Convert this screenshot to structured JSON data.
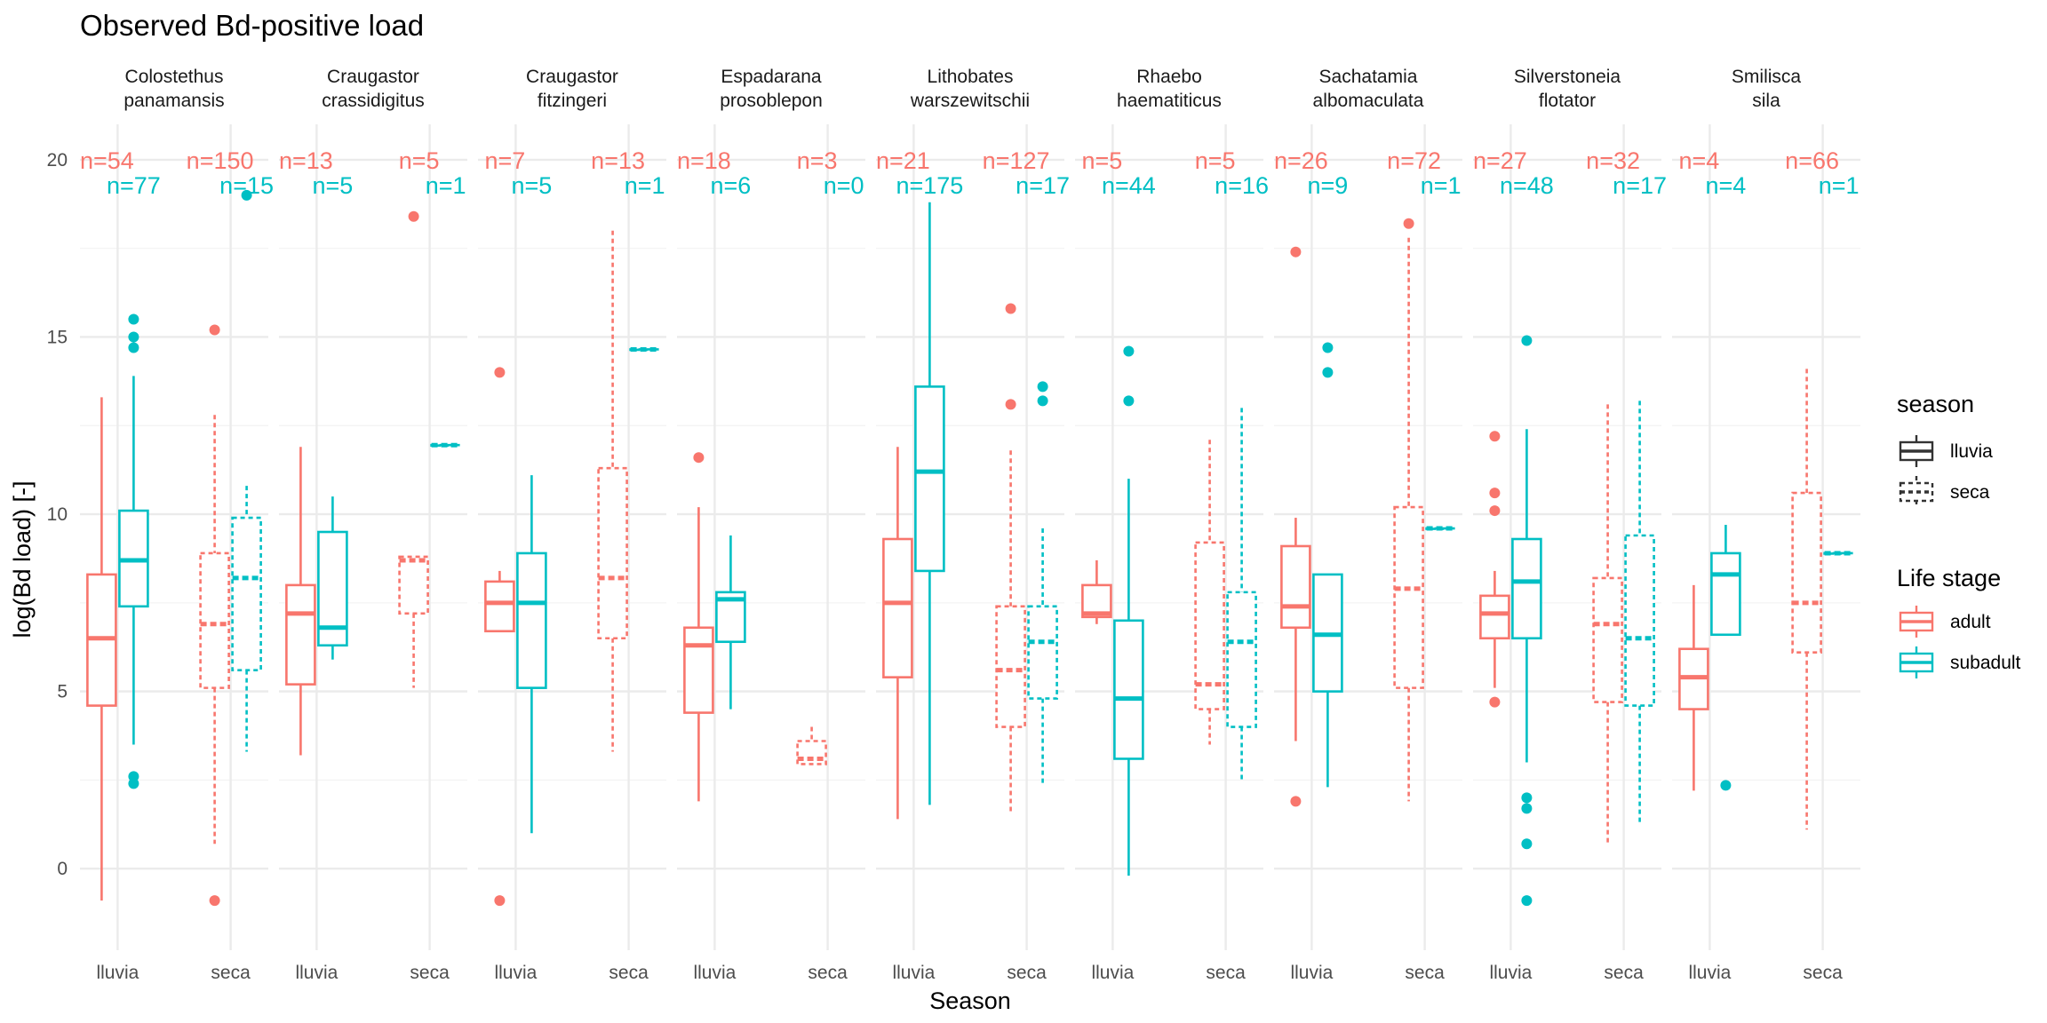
{
  "chart_data": {
    "type": "boxplot",
    "title": "Observed Bd-positive load",
    "xlabel": "Season",
    "ylabel": "log(Bd load) [-]",
    "ylim": [
      -2.3,
      21
    ],
    "yticks": [
      0,
      5,
      10,
      15,
      20
    ],
    "categories": [
      "lluvia",
      "seca"
    ],
    "grid": true,
    "colors": {
      "adult": "#F8766D",
      "subadult": "#00BFC4"
    },
    "legends": [
      {
        "title": "season",
        "entries": [
          {
            "label": "lluvia",
            "linetype": "solid"
          },
          {
            "label": "seca",
            "linetype": "dashed"
          }
        ]
      },
      {
        "title": "Life stage",
        "entries": [
          {
            "label": "adult",
            "color": "#F8766D"
          },
          {
            "label": "subadult",
            "color": "#00BFC4"
          }
        ]
      }
    ],
    "legend_placement": "right",
    "facets": [
      {
        "line1": "Colostethus",
        "line2": "panamansis",
        "counts": {
          "lluvia_adult": "n=54",
          "lluvia_subadult": "n=77",
          "seca_adult": "n=150",
          "seca_subadult": "n=15"
        },
        "boxes": [
          {
            "season": "lluvia",
            "stage": "adult",
            "lower": -0.9,
            "q1": 4.6,
            "median": 6.5,
            "q3": 8.3,
            "upper": 13.3,
            "outliers": []
          },
          {
            "season": "lluvia",
            "stage": "subadult",
            "lower": 3.5,
            "q1": 7.4,
            "median": 8.7,
            "q3": 10.1,
            "upper": 13.9,
            "outliers": [
              15.5,
              15.0,
              14.7,
              2.6,
              2.4
            ]
          },
          {
            "season": "seca",
            "stage": "adult",
            "lower": 0.7,
            "q1": 5.1,
            "median": 6.9,
            "q3": 8.9,
            "upper": 12.8,
            "outliers": [
              15.2,
              -0.9
            ]
          },
          {
            "season": "seca",
            "stage": "subadult",
            "lower": 3.3,
            "q1": 5.6,
            "median": 8.2,
            "q3": 9.9,
            "upper": 10.8,
            "outliers": [
              19.0
            ]
          }
        ]
      },
      {
        "line1": "Craugastor",
        "line2": "crassidigitus",
        "counts": {
          "lluvia_adult": "n=13",
          "lluvia_subadult": "n=5",
          "seca_adult": "n=5",
          "seca_subadult": "n=1"
        },
        "boxes": [
          {
            "season": "lluvia",
            "stage": "adult",
            "lower": 3.2,
            "q1": 5.2,
            "median": 7.2,
            "q3": 8.0,
            "upper": 11.9,
            "outliers": []
          },
          {
            "season": "lluvia",
            "stage": "subadult",
            "lower": 5.9,
            "q1": 6.3,
            "median": 6.8,
            "q3": 9.5,
            "upper": 10.5,
            "outliers": []
          },
          {
            "season": "seca",
            "stage": "adult",
            "lower": 5.1,
            "q1": 7.2,
            "median": 8.7,
            "q3": 8.8,
            "upper": 8.8,
            "outliers": [
              18.4
            ]
          },
          {
            "season": "seca",
            "stage": "subadult",
            "lower": 11.95,
            "q1": 11.95,
            "median": 11.95,
            "q3": 11.95,
            "upper": 11.95,
            "outliers": []
          }
        ]
      },
      {
        "line1": "Craugastor",
        "line2": "fitzingeri",
        "counts": {
          "lluvia_adult": "n=7",
          "lluvia_subadult": "n=5",
          "seca_adult": "n=13",
          "seca_subadult": "n=1"
        },
        "boxes": [
          {
            "season": "lluvia",
            "stage": "adult",
            "lower": 6.7,
            "q1": 6.7,
            "median": 7.5,
            "q3": 8.1,
            "upper": 8.4,
            "outliers": [
              14.0,
              -0.9
            ]
          },
          {
            "season": "lluvia",
            "stage": "subadult",
            "lower": 1.0,
            "q1": 5.1,
            "median": 7.5,
            "q3": 8.9,
            "upper": 11.1,
            "outliers": []
          },
          {
            "season": "seca",
            "stage": "adult",
            "lower": 3.3,
            "q1": 6.5,
            "median": 8.2,
            "q3": 11.3,
            "upper": 18.0,
            "outliers": []
          },
          {
            "season": "seca",
            "stage": "subadult",
            "lower": 14.65,
            "q1": 14.65,
            "median": 14.65,
            "q3": 14.65,
            "upper": 14.65,
            "outliers": []
          }
        ]
      },
      {
        "line1": "Espadarana",
        "line2": "prosoblepon",
        "counts": {
          "lluvia_adult": "n=18",
          "lluvia_subadult": "n=6",
          "seca_adult": "n=3",
          "seca_subadult": "n=0"
        },
        "boxes": [
          {
            "season": "lluvia",
            "stage": "adult",
            "lower": 1.9,
            "q1": 4.4,
            "median": 6.3,
            "q3": 6.8,
            "upper": 10.2,
            "outliers": [
              11.6
            ]
          },
          {
            "season": "lluvia",
            "stage": "subadult",
            "lower": 4.5,
            "q1": 6.4,
            "median": 7.6,
            "q3": 7.8,
            "upper": 9.4,
            "outliers": []
          },
          {
            "season": "seca",
            "stage": "adult",
            "lower": 2.95,
            "q1": 2.95,
            "median": 3.1,
            "q3": 3.6,
            "upper": 4.0,
            "outliers": []
          }
        ]
      },
      {
        "line1": "Lithobates",
        "line2": "warszewitschii",
        "counts": {
          "lluvia_adult": "n=21",
          "lluvia_subadult": "n=175",
          "seca_adult": "n=127",
          "seca_subadult": "n=17"
        },
        "boxes": [
          {
            "season": "lluvia",
            "stage": "adult",
            "lower": 1.4,
            "q1": 5.4,
            "median": 7.5,
            "q3": 9.3,
            "upper": 11.9,
            "outliers": []
          },
          {
            "season": "lluvia",
            "stage": "subadult",
            "lower": 1.8,
            "q1": 8.4,
            "median": 11.2,
            "q3": 13.6,
            "upper": 18.8,
            "outliers": []
          },
          {
            "season": "seca",
            "stage": "adult",
            "lower": 1.6,
            "q1": 4.0,
            "median": 5.6,
            "q3": 7.4,
            "upper": 11.8,
            "outliers": [
              15.8,
              13.1
            ]
          },
          {
            "season": "seca",
            "stage": "subadult",
            "lower": 2.4,
            "q1": 4.8,
            "median": 6.4,
            "q3": 7.4,
            "upper": 9.6,
            "outliers": [
              13.6,
              13.2
            ]
          }
        ]
      },
      {
        "line1": "Rhaebo",
        "line2": "haematiticus",
        "counts": {
          "lluvia_adult": "n=5",
          "lluvia_subadult": "n=44",
          "seca_adult": "n=5",
          "seca_subadult": "n=16"
        },
        "boxes": [
          {
            "season": "lluvia",
            "stage": "adult",
            "lower": 6.9,
            "q1": 7.1,
            "median": 7.2,
            "q3": 8.0,
            "upper": 8.7,
            "outliers": []
          },
          {
            "season": "lluvia",
            "stage": "subadult",
            "lower": -0.2,
            "q1": 3.1,
            "median": 4.8,
            "q3": 7.0,
            "upper": 11.0,
            "outliers": [
              14.6,
              13.2
            ]
          },
          {
            "season": "seca",
            "stage": "adult",
            "lower": 3.5,
            "q1": 4.5,
            "median": 5.2,
            "q3": 9.2,
            "upper": 12.1,
            "outliers": []
          },
          {
            "season": "seca",
            "stage": "subadult",
            "lower": 2.5,
            "q1": 4.0,
            "median": 6.4,
            "q3": 7.8,
            "upper": 13.0,
            "outliers": []
          }
        ]
      },
      {
        "line1": "Sachatamia",
        "line2": "albomaculata",
        "counts": {
          "lluvia_adult": "n=26",
          "lluvia_subadult": "n=9",
          "seca_adult": "n=72",
          "seca_subadult": "n=1"
        },
        "boxes": [
          {
            "season": "lluvia",
            "stage": "adult",
            "lower": 3.6,
            "q1": 6.8,
            "median": 7.4,
            "q3": 9.1,
            "upper": 9.9,
            "outliers": [
              17.4,
              1.9
            ]
          },
          {
            "season": "lluvia",
            "stage": "subadult",
            "lower": 2.3,
            "q1": 5.0,
            "median": 6.6,
            "q3": 8.3,
            "upper": 8.3,
            "outliers": [
              14.7,
              14.0
            ]
          },
          {
            "season": "seca",
            "stage": "adult",
            "lower": 1.9,
            "q1": 5.1,
            "median": 7.9,
            "q3": 10.2,
            "upper": 17.8,
            "outliers": [
              18.2
            ]
          },
          {
            "season": "seca",
            "stage": "subadult",
            "lower": 9.6,
            "q1": 9.6,
            "median": 9.6,
            "q3": 9.6,
            "upper": 9.6,
            "outliers": []
          }
        ]
      },
      {
        "line1": "Silverstoneia",
        "line2": "flotator",
        "counts": {
          "lluvia_adult": "n=27",
          "lluvia_subadult": "n=48",
          "seca_adult": "n=32",
          "seca_subadult": "n=17"
        },
        "boxes": [
          {
            "season": "lluvia",
            "stage": "adult",
            "lower": 5.1,
            "q1": 6.5,
            "median": 7.2,
            "q3": 7.7,
            "upper": 8.4,
            "outliers": [
              12.2,
              10.6,
              10.1,
              4.7
            ]
          },
          {
            "season": "lluvia",
            "stage": "subadult",
            "lower": 3.0,
            "q1": 6.5,
            "median": 8.1,
            "q3": 9.3,
            "upper": 12.4,
            "outliers": [
              14.9,
              2.0,
              1.7,
              0.7,
              -0.9
            ]
          },
          {
            "season": "seca",
            "stage": "adult",
            "lower": 0.7,
            "q1": 4.7,
            "median": 6.9,
            "q3": 8.2,
            "upper": 13.1,
            "outliers": []
          },
          {
            "season": "seca",
            "stage": "subadult",
            "lower": 1.3,
            "q1": 4.6,
            "median": 6.5,
            "q3": 9.4,
            "upper": 13.2,
            "outliers": []
          }
        ]
      },
      {
        "line1": "Smilisca",
        "line2": "sila",
        "counts": {
          "lluvia_adult": "n=4",
          "lluvia_subadult": "n=4",
          "seca_adult": "n=66",
          "seca_subadult": "n=1"
        },
        "boxes": [
          {
            "season": "lluvia",
            "stage": "adult",
            "lower": 2.2,
            "q1": 4.5,
            "median": 5.4,
            "q3": 6.2,
            "upper": 8.0,
            "outliers": []
          },
          {
            "season": "lluvia",
            "stage": "subadult",
            "lower": 6.6,
            "q1": 6.6,
            "median": 8.3,
            "q3": 8.9,
            "upper": 9.7,
            "outliers": [
              2.35
            ]
          },
          {
            "season": "seca",
            "stage": "adult",
            "lower": 1.1,
            "q1": 6.1,
            "median": 7.5,
            "q3": 10.6,
            "upper": 14.1,
            "outliers": []
          },
          {
            "season": "seca",
            "stage": "subadult",
            "lower": 8.9,
            "q1": 8.9,
            "median": 8.9,
            "q3": 8.9,
            "upper": 8.9,
            "outliers": []
          }
        ]
      }
    ]
  }
}
